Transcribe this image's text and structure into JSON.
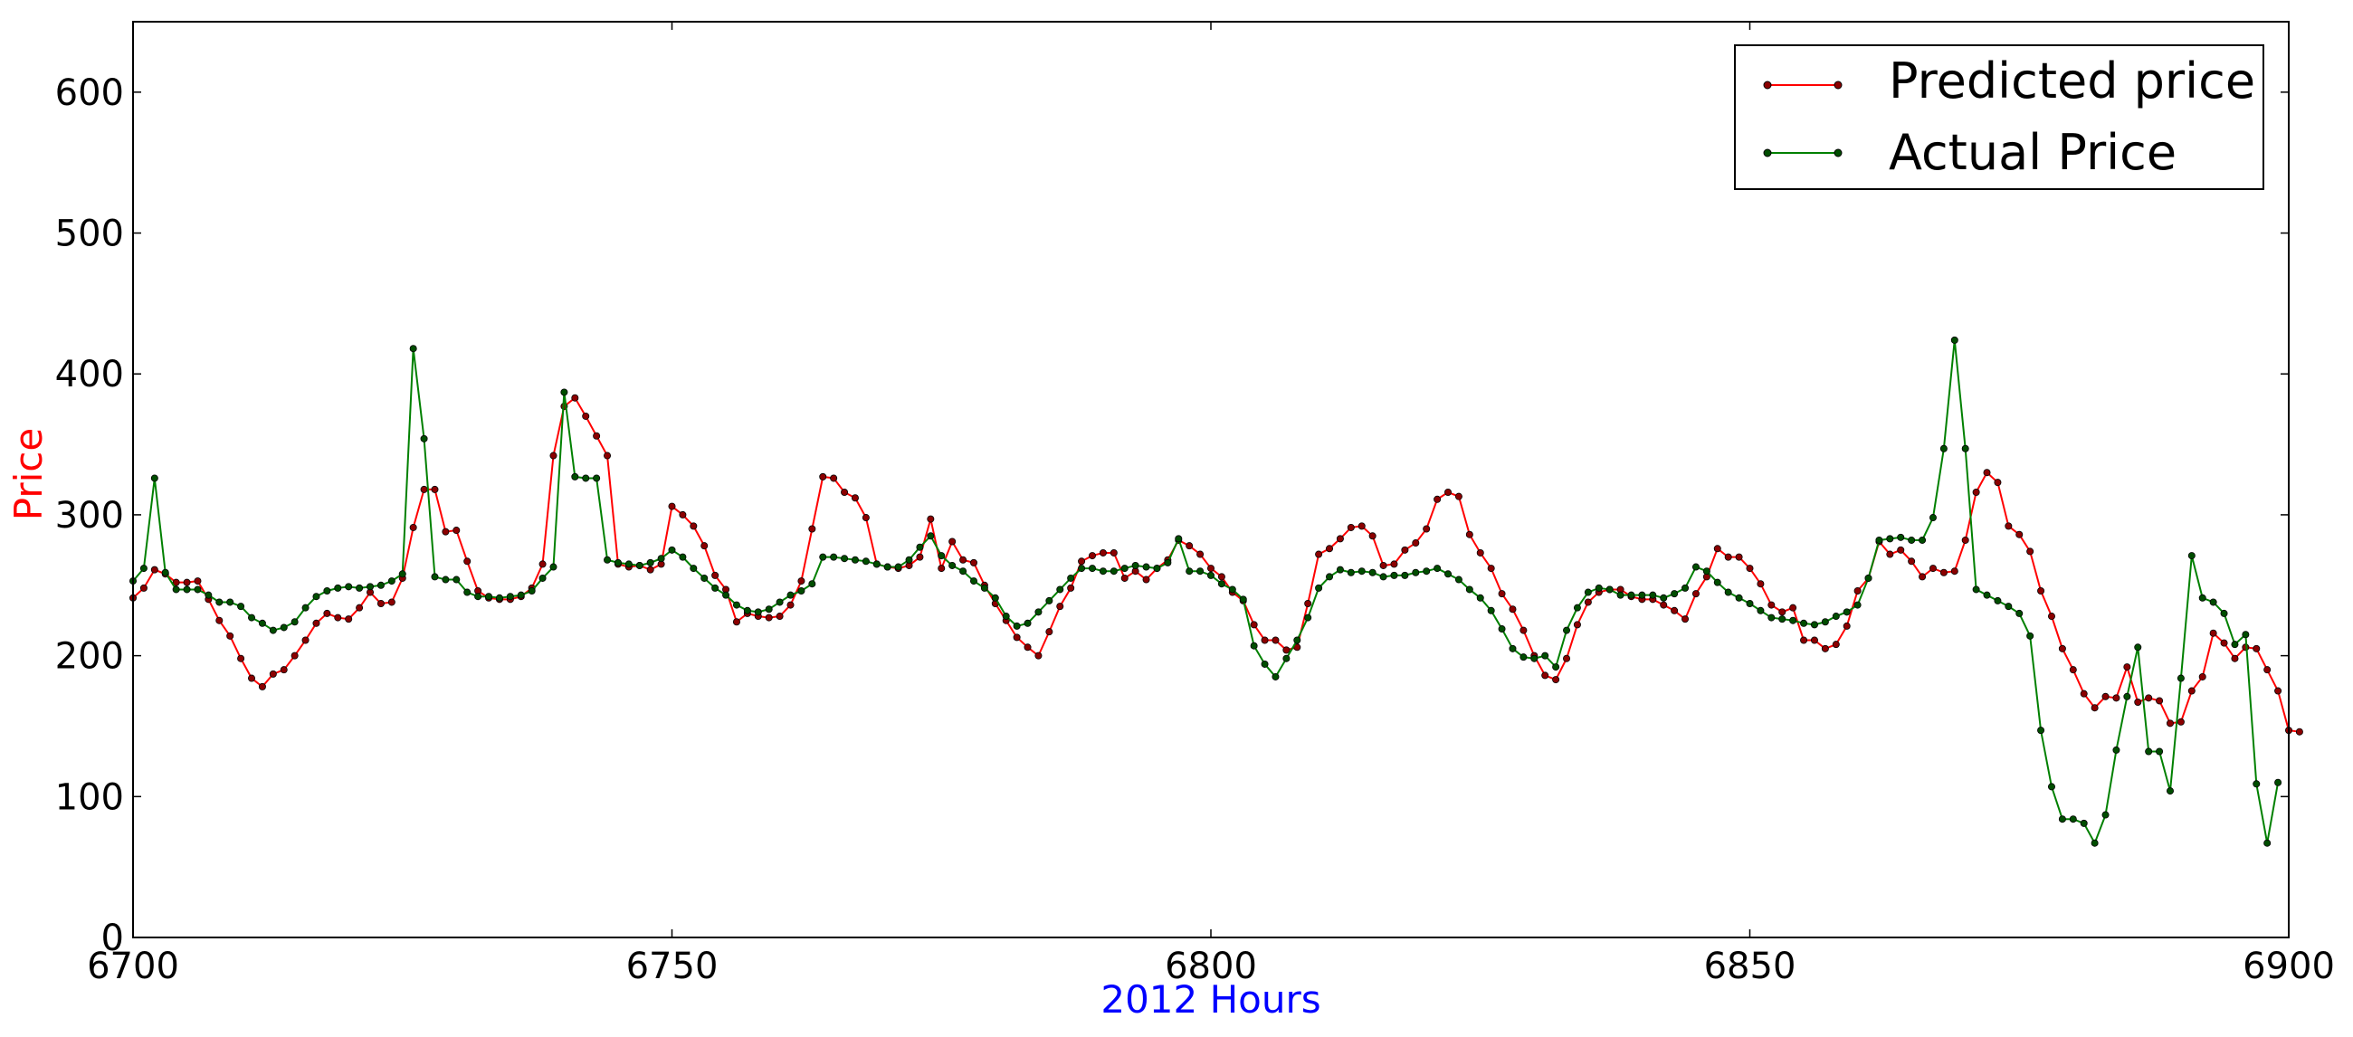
{
  "chart_data": {
    "type": "line",
    "title": "",
    "xlabel": "2012 Hours",
    "ylabel": "Price",
    "xlabel_color": "#0000ff",
    "ylabel_color": "#ff0000",
    "xlim": [
      6700,
      6900
    ],
    "ylim": [
      0,
      650
    ],
    "x_ticks": [
      6700,
      6750,
      6800,
      6850,
      6900
    ],
    "x_tick_labels": [
      "6700",
      "6750",
      "6800",
      "6850",
      "6900"
    ],
    "y_ticks": [
      0,
      100,
      200,
      300,
      400,
      500,
      600
    ],
    "y_tick_labels": [
      "0",
      "100",
      "200",
      "300",
      "400",
      "500",
      "600"
    ],
    "grid": false,
    "legend_position": "top-right",
    "x_start": 6700,
    "x_step": 1,
    "series": [
      {
        "name": "Predicted price",
        "color": "#ff0000",
        "values": [
          241,
          248,
          261,
          258,
          252,
          252,
          253,
          240,
          225,
          214,
          198,
          184,
          178,
          187,
          190,
          200,
          211,
          223,
          230,
          227,
          226,
          234,
          245,
          237,
          238,
          255,
          291,
          318,
          318,
          288,
          289,
          267,
          246,
          241,
          240,
          240,
          242,
          248,
          265,
          342,
          377,
          383,
          370,
          356,
          342,
          265,
          263,
          264,
          261,
          265,
          306,
          300,
          292,
          278,
          257,
          247,
          224,
          230,
          228,
          227,
          228,
          236,
          253,
          290,
          327,
          326,
          316,
          312,
          298,
          265,
          263,
          262,
          264,
          270,
          297,
          262,
          281,
          268,
          266,
          250,
          237,
          225,
          213,
          206,
          200,
          217,
          235,
          248,
          267,
          271,
          273,
          273,
          255,
          260,
          254,
          262,
          268,
          282,
          278,
          272,
          262,
          256,
          245,
          239,
          222,
          211,
          211,
          204,
          206,
          237,
          272,
          276,
          283,
          291,
          292,
          285,
          264,
          265,
          275,
          280,
          290,
          311,
          316,
          313,
          286,
          273,
          262,
          244,
          233,
          218,
          200,
          186,
          183,
          198,
          222,
          238,
          245,
          247,
          247,
          242,
          240,
          240,
          236,
          232,
          226,
          244,
          256,
          276,
          270,
          270,
          262,
          251,
          236,
          231,
          234,
          211,
          211,
          205,
          208,
          221,
          246,
          255,
          281,
          272,
          275,
          267,
          256,
          262,
          259,
          260,
          282,
          316,
          330,
          323,
          292,
          286,
          274,
          246,
          228,
          205,
          190,
          173,
          163,
          171,
          170,
          192,
          167,
          170,
          168,
          152,
          153,
          175,
          185,
          216,
          209,
          198,
          206,
          205,
          190,
          175,
          147,
          146
        ]
      },
      {
        "name": "Actual Price",
        "color": "#008000",
        "values": [
          253,
          262,
          326,
          259,
          247,
          247,
          247,
          243,
          238,
          238,
          235,
          227,
          223,
          218,
          220,
          224,
          234,
          242,
          246,
          248,
          249,
          248,
          249,
          250,
          253,
          258,
          418,
          354,
          256,
          254,
          254,
          245,
          242,
          242,
          241,
          242,
          243,
          246,
          255,
          263,
          387,
          327,
          326,
          326,
          268,
          266,
          265,
          264,
          266,
          269,
          275,
          270,
          262,
          255,
          248,
          243,
          236,
          232,
          231,
          233,
          238,
          243,
          246,
          251,
          270,
          270,
          269,
          268,
          267,
          265,
          263,
          263,
          268,
          277,
          285,
          271,
          264,
          260,
          253,
          248,
          241,
          228,
          221,
          223,
          231,
          239,
          247,
          255,
          262,
          262,
          260,
          260,
          262,
          264,
          263,
          262,
          266,
          283,
          260,
          260,
          257,
          251,
          247,
          240,
          207,
          194,
          185,
          198,
          211,
          227,
          248,
          256,
          261,
          259,
          260,
          259,
          256,
          257,
          257,
          259,
          260,
          262,
          258,
          254,
          247,
          241,
          232,
          219,
          205,
          199,
          198,
          200,
          192,
          218,
          234,
          245,
          248,
          247,
          243,
          243,
          243,
          243,
          241,
          244,
          248,
          263,
          260,
          252,
          245,
          241,
          237,
          232,
          227,
          226,
          225,
          223,
          222,
          224,
          228,
          231,
          236,
          255,
          282,
          283,
          284,
          282,
          282,
          298,
          347,
          424,
          347,
          247,
          243,
          239,
          235,
          230,
          214,
          147,
          107,
          84,
          84,
          81,
          67,
          87,
          133,
          171,
          206,
          132,
          132,
          104,
          184,
          271,
          241,
          238,
          230,
          208,
          215,
          109,
          67,
          110
        ]
      }
    ]
  }
}
